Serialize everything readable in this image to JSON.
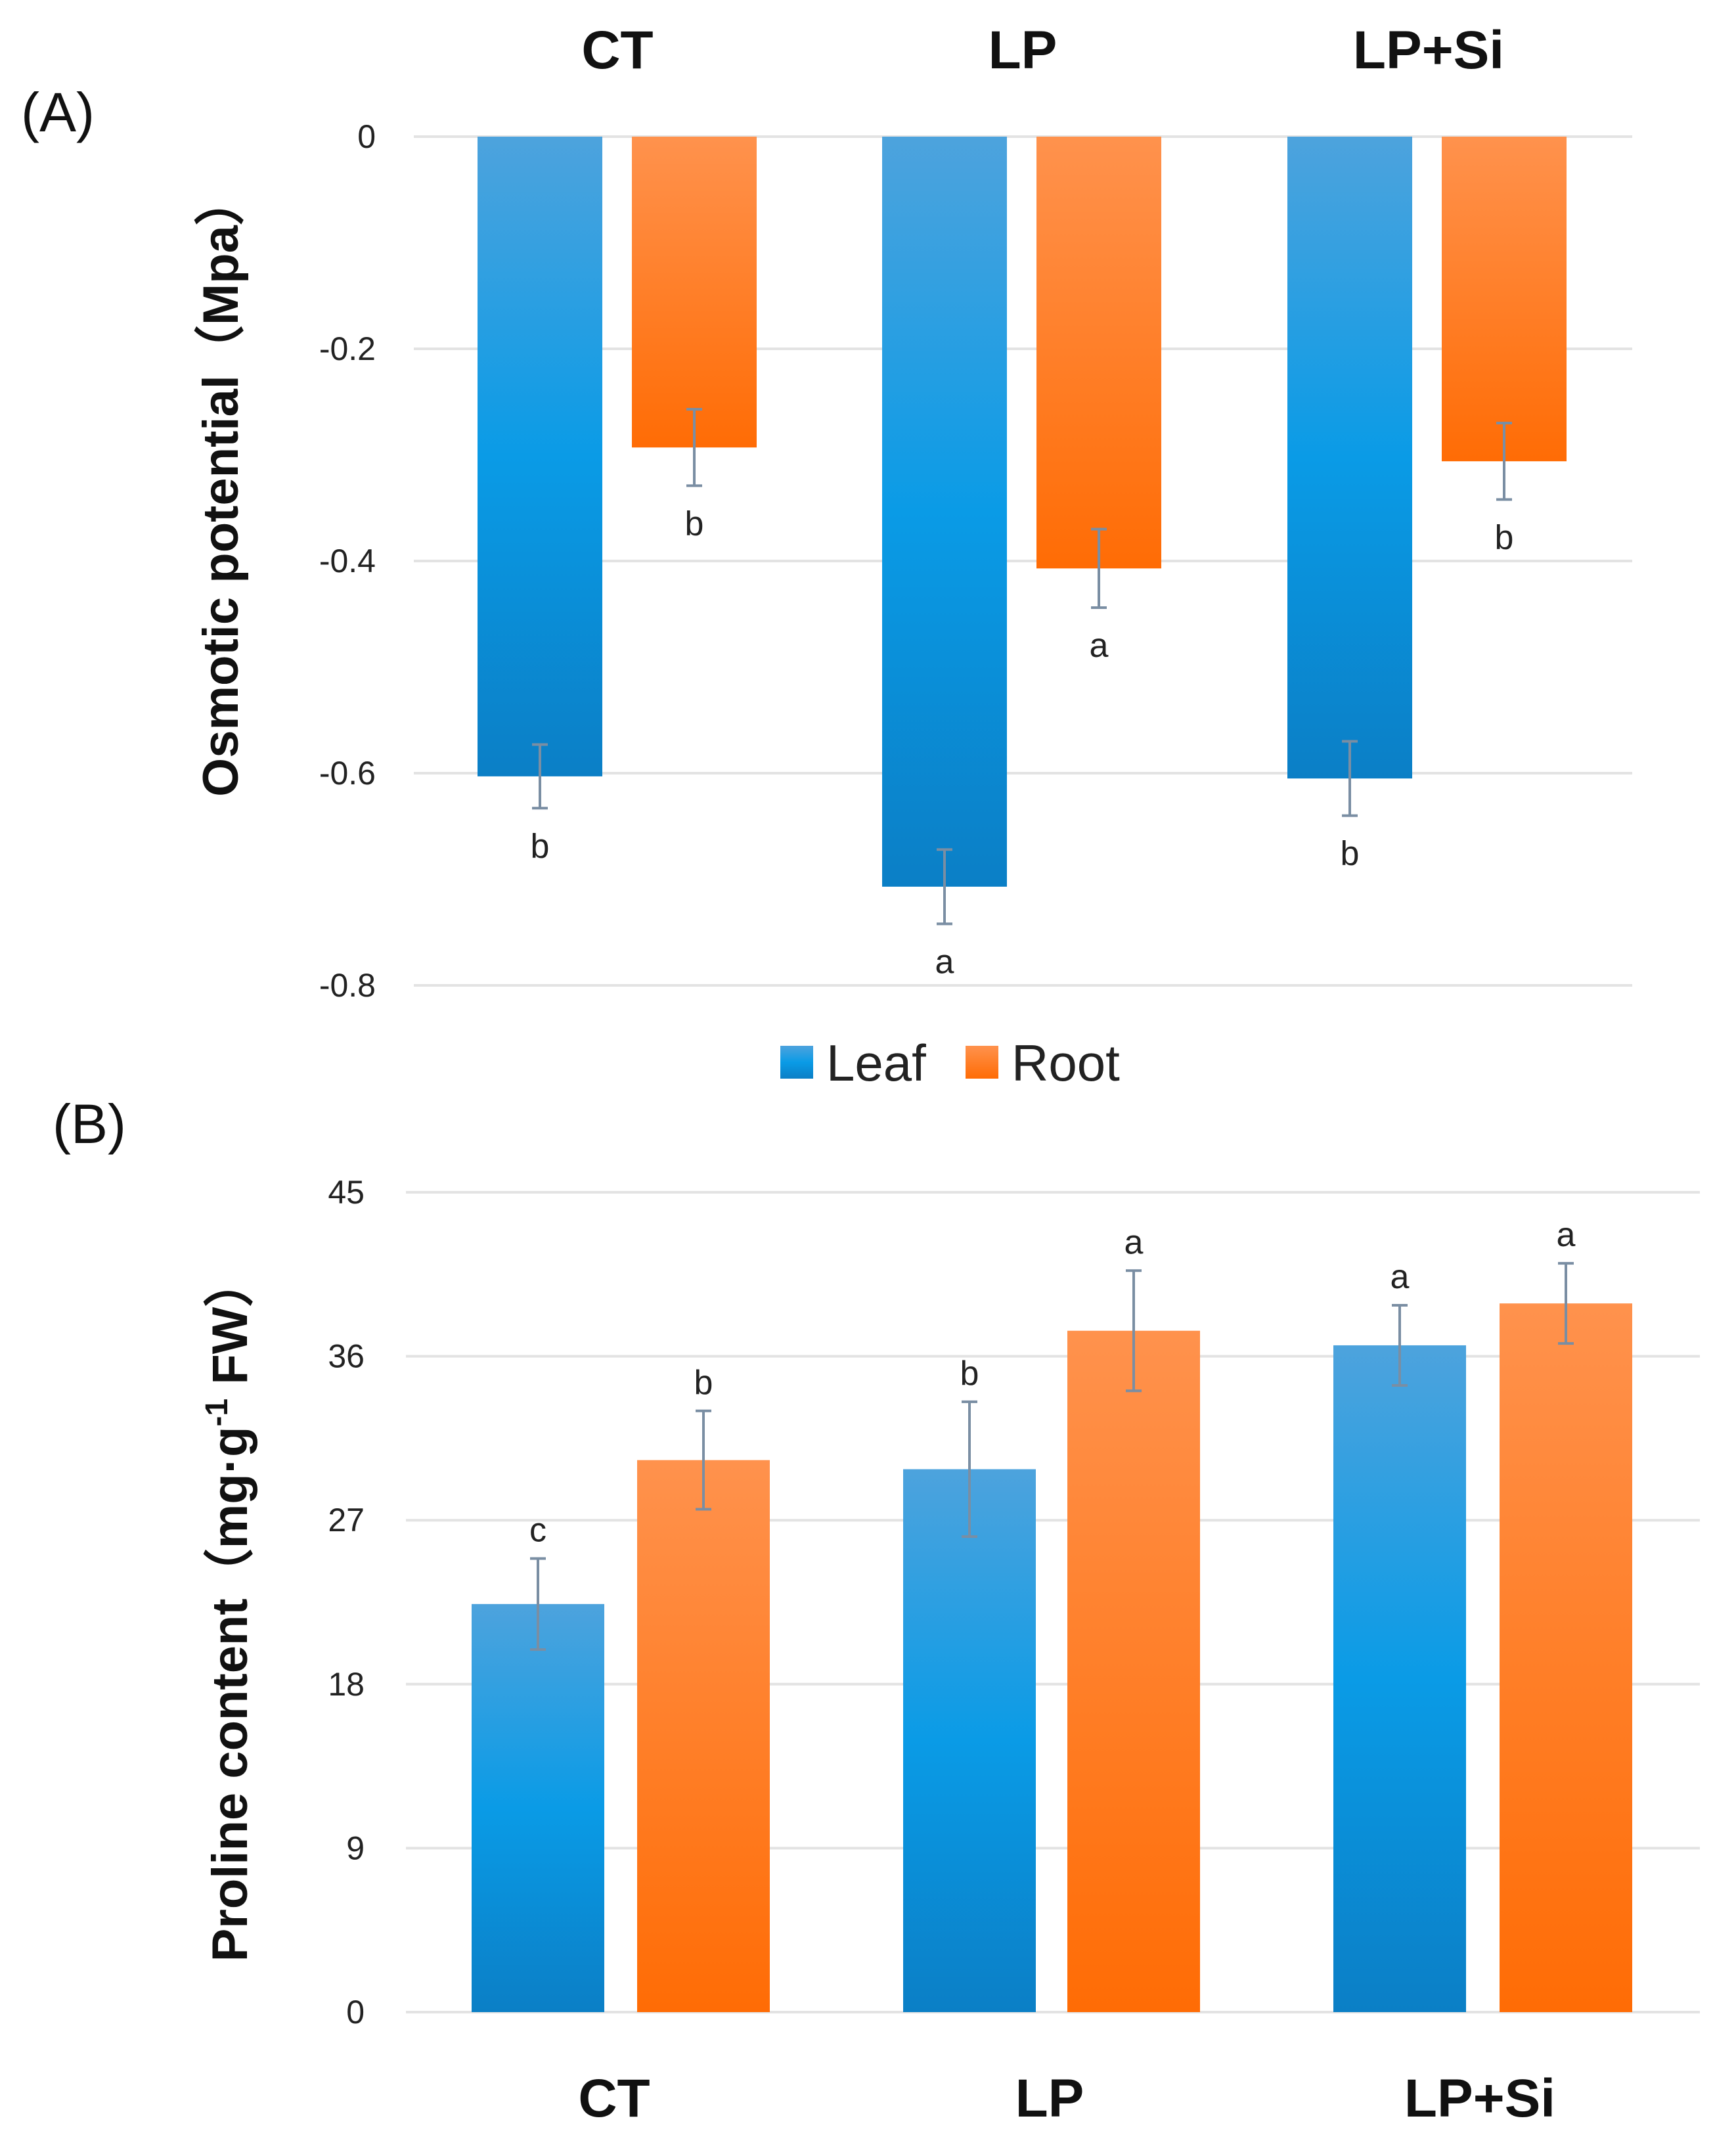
{
  "colors": {
    "leaf_top": "#4da3dd",
    "leaf_mid": "#0a9be6",
    "leaf_bottom": "#0b7fc6",
    "root_top": "#ff924d",
    "root_bottom": "#ff6c05"
  },
  "chart_data": [
    {
      "panel": "(A)",
      "type": "bar",
      "categories": [
        "CT",
        "LP",
        "LP+Si"
      ],
      "ylabel": "Osmotic potential（Mpa）",
      "ylim": [
        -0.8,
        0
      ],
      "yticks": [
        "0",
        "-0.2",
        "-0.4",
        "-0.6",
        "-0.8"
      ],
      "ytick_values": [
        0,
        -0.2,
        -0.4,
        -0.6,
        -0.8
      ],
      "series": [
        {
          "name": "Leaf",
          "values": [
            -0.603,
            -0.707,
            -0.605
          ],
          "errors": [
            0.03,
            0.035,
            0.035
          ],
          "letters": [
            "b",
            "a",
            "b"
          ]
        },
        {
          "name": "Root",
          "values": [
            -0.293,
            -0.407,
            -0.306
          ],
          "errors": [
            0.036,
            0.037,
            0.036
          ],
          "letters": [
            "b",
            "a",
            "b"
          ]
        }
      ],
      "legend": [
        "Leaf",
        "Root"
      ]
    },
    {
      "panel": "(B)",
      "type": "bar",
      "categories": [
        "CT",
        "LP",
        "LP+Si"
      ],
      "ylabel_main": "Proline content（mg·g",
      "ylabel_sup": "-1",
      "ylabel_end": " FW）",
      "ylim": [
        0,
        45
      ],
      "yticks": [
        "45",
        "36",
        "27",
        "18",
        "9",
        "0"
      ],
      "ytick_values": [
        45,
        36,
        27,
        18,
        9,
        0
      ],
      "series": [
        {
          "name": "Leaf",
          "values": [
            22.4,
            29.8,
            36.6
          ],
          "errors": [
            2.5,
            3.7,
            2.2
          ],
          "letters": [
            "c",
            "b",
            "a"
          ]
        },
        {
          "name": "Root",
          "values": [
            30.3,
            37.4,
            38.9
          ],
          "errors": [
            2.7,
            3.3,
            2.2
          ],
          "letters": [
            "b",
            "a",
            "a"
          ]
        }
      ]
    }
  ]
}
